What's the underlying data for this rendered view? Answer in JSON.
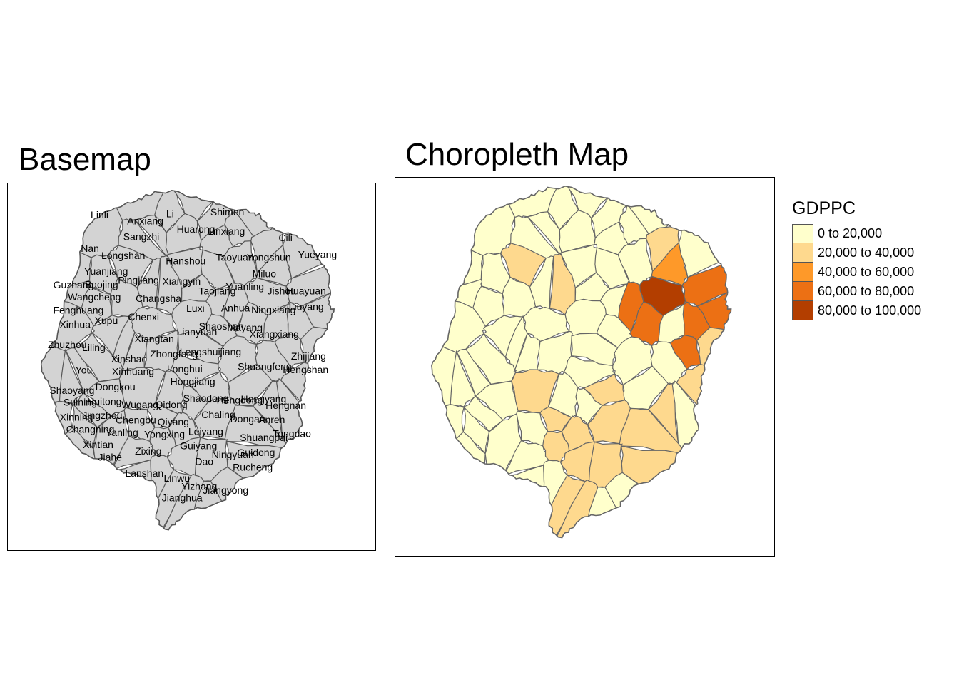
{
  "basemap": {
    "title": "Basemap",
    "fill": "#d3d3d3",
    "border": "#555555",
    "labels": [
      "Shimen",
      "Li",
      "Linli",
      "Anxiang",
      "Huarong",
      "Linxiang",
      "Sangzhi",
      "Cili",
      "Nan",
      "Yueyang",
      "Longshan",
      "Yongshun",
      "Taoyuan",
      "Hanshou",
      "Yuanjiang",
      "Miluo",
      "Pingjiang",
      "Xiangyin",
      "Baojing",
      "Guzhang",
      "Yuanling",
      "Huayuan",
      "Jishou",
      "Taojiang",
      "Wangcheng",
      "Changsha",
      "Liuyang",
      "Anhua",
      "Luxi",
      "Ningxiang",
      "Fenghuang",
      "Chenxi",
      "Xupu",
      "Xinhua",
      "Shaoshan",
      "Mayang",
      "Lianyuan",
      "Xiangxiang",
      "Xiangtan",
      "Zhuzhou",
      "Liling",
      "Lengshuijiang",
      "Zhongfang",
      "Zhijiang",
      "Xinshao",
      "Shuangfeng",
      "Longhui",
      "Hengshan",
      "You",
      "Xinhuang",
      "Hongjiang",
      "Dongkou",
      "Shaoyang",
      "Shaodong",
      "Hengyang",
      "Hengdong",
      "Huitong",
      "Suining",
      "Wugang",
      "Qidong",
      "Hengnan",
      "Chaling",
      "Jingzhou",
      "Xinning",
      "Dongan",
      "Anren",
      "Chengbu",
      "Qiyang",
      "Changning",
      "Leiyang",
      "Yanling",
      "Tongdao",
      "Yongxing",
      "Shuangpai",
      "Xintian",
      "Guiyang",
      "Zixing",
      "Guidong",
      "Ningyuan",
      "Jiahe",
      "Dao",
      "Rucheng",
      "Lanshan",
      "Linwu",
      "Yizhang",
      "Jiangyong",
      "Jianghua"
    ]
  },
  "choropleth": {
    "title": "Choropleth Map",
    "border": "#666666"
  },
  "legend": {
    "title": "GDPPC",
    "classes": [
      {
        "label": "0 to 20,000",
        "color": "#ffffcc"
      },
      {
        "label": "20,000 to 40,000",
        "color": "#fed98e"
      },
      {
        "label": "40,000 to 60,000",
        "color": "#fe9929"
      },
      {
        "label": "60,000 to 80,000",
        "color": "#ec7014"
      },
      {
        "label": "80,000 to 100,000",
        "color": "#b33e00"
      }
    ]
  }
}
